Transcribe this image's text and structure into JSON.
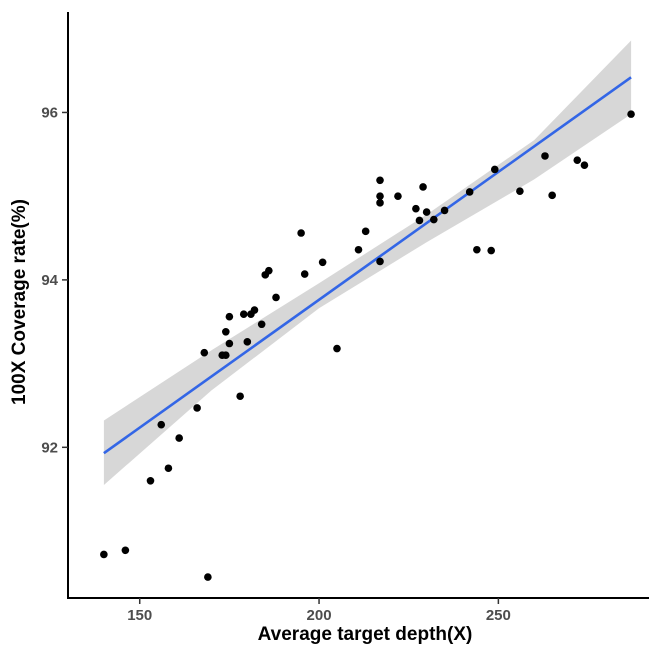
{
  "chart_data": {
    "type": "scatter",
    "xlabel": "Average target depth(X)",
    "ylabel": "100X Coverage rate(%)",
    "xlim": [
      130,
      292
    ],
    "ylim": [
      90.2,
      97.2
    ],
    "x_ticks": [
      150,
      200,
      250
    ],
    "y_ticks": [
      92,
      94,
      96
    ],
    "grid": false,
    "point_color": "#000000",
    "fit_color": "#3366e6",
    "band_color": "#d3d3d3",
    "fit_line": {
      "x": [
        140,
        287
      ],
      "y": [
        91.93,
        96.42
      ]
    },
    "confidence_band": {
      "x": [
        140,
        170,
        200,
        230,
        260,
        287
      ],
      "lower": [
        91.55,
        92.68,
        93.66,
        94.45,
        95.2,
        95.98
      ],
      "upper": [
        92.32,
        93.16,
        93.96,
        94.78,
        95.67,
        96.86
      ]
    },
    "points": [
      {
        "x": 140,
        "y": 90.72
      },
      {
        "x": 146,
        "y": 90.77
      },
      {
        "x": 153,
        "y": 91.6
      },
      {
        "x": 156,
        "y": 92.27
      },
      {
        "x": 158,
        "y": 91.75
      },
      {
        "x": 161,
        "y": 92.11
      },
      {
        "x": 166,
        "y": 92.47
      },
      {
        "x": 168,
        "y": 93.13
      },
      {
        "x": 169,
        "y": 90.45
      },
      {
        "x": 173,
        "y": 93.1
      },
      {
        "x": 174,
        "y": 93.38
      },
      {
        "x": 174,
        "y": 93.1
      },
      {
        "x": 175,
        "y": 93.24
      },
      {
        "x": 175,
        "y": 93.56
      },
      {
        "x": 178,
        "y": 92.61
      },
      {
        "x": 179,
        "y": 93.59
      },
      {
        "x": 180,
        "y": 93.26
      },
      {
        "x": 181,
        "y": 93.59
      },
      {
        "x": 182,
        "y": 93.64
      },
      {
        "x": 184,
        "y": 93.47
      },
      {
        "x": 185,
        "y": 94.06
      },
      {
        "x": 186,
        "y": 94.11
      },
      {
        "x": 188,
        "y": 93.79
      },
      {
        "x": 195,
        "y": 94.56
      },
      {
        "x": 196,
        "y": 94.07
      },
      {
        "x": 201,
        "y": 94.21
      },
      {
        "x": 205,
        "y": 93.18
      },
      {
        "x": 211,
        "y": 94.36
      },
      {
        "x": 213,
        "y": 94.58
      },
      {
        "x": 217,
        "y": 95.19
      },
      {
        "x": 217,
        "y": 95.0
      },
      {
        "x": 217,
        "y": 94.92
      },
      {
        "x": 217,
        "y": 94.22
      },
      {
        "x": 222,
        "y": 95.0
      },
      {
        "x": 227,
        "y": 94.85
      },
      {
        "x": 228,
        "y": 94.71
      },
      {
        "x": 229,
        "y": 95.11
      },
      {
        "x": 230,
        "y": 94.81
      },
      {
        "x": 232,
        "y": 94.72
      },
      {
        "x": 235,
        "y": 94.83
      },
      {
        "x": 242,
        "y": 95.05
      },
      {
        "x": 244,
        "y": 94.36
      },
      {
        "x": 248,
        "y": 94.35
      },
      {
        "x": 249,
        "y": 95.32
      },
      {
        "x": 256,
        "y": 95.06
      },
      {
        "x": 263,
        "y": 95.48
      },
      {
        "x": 265,
        "y": 95.01
      },
      {
        "x": 272,
        "y": 95.43
      },
      {
        "x": 274,
        "y": 95.37
      },
      {
        "x": 287,
        "y": 95.98
      }
    ]
  }
}
